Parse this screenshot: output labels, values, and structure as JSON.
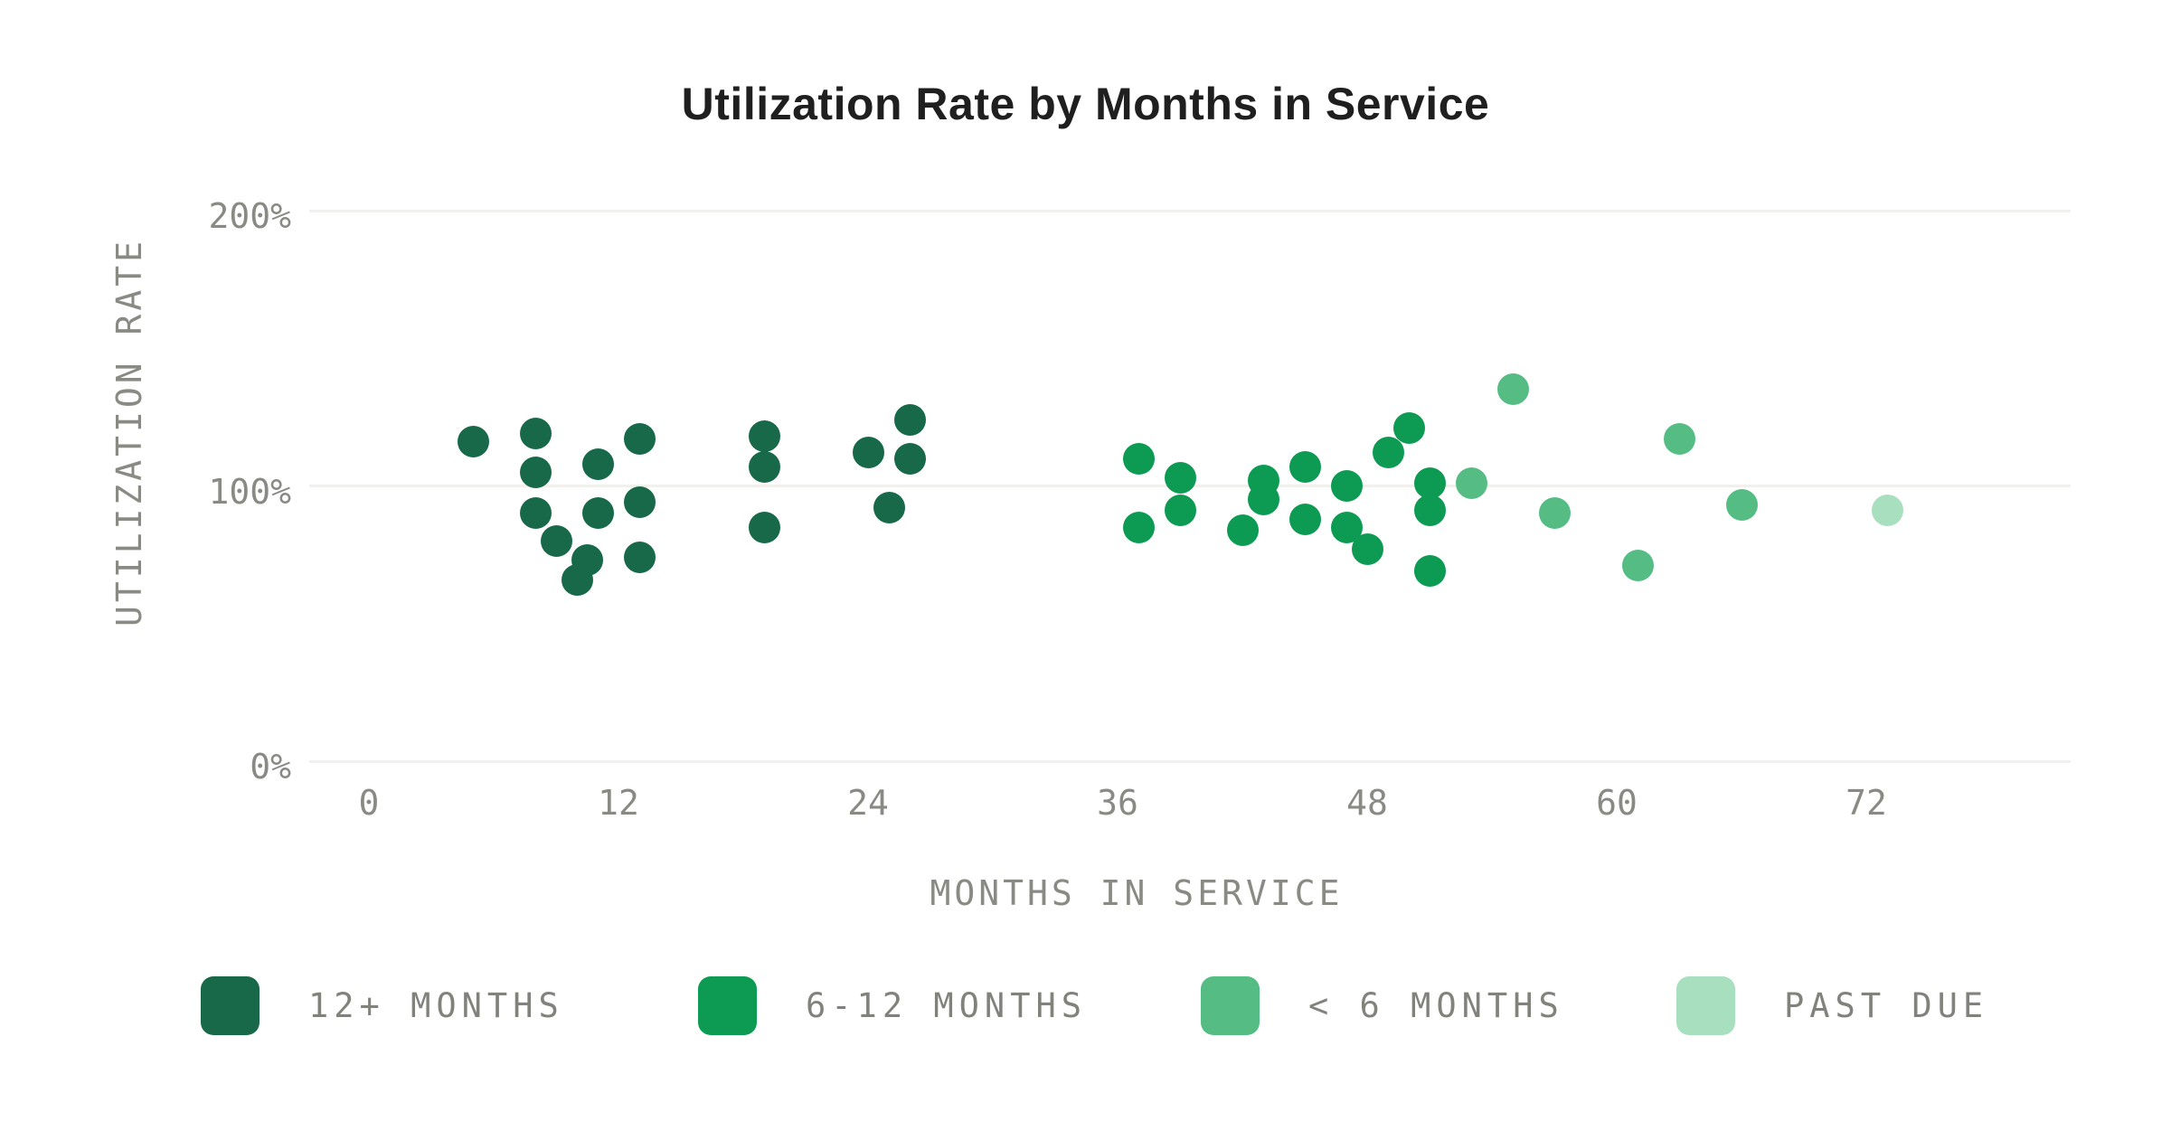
{
  "title": "Utilization Rate by Months in Service",
  "x_axis": {
    "label": "MONTHS IN SERVICE",
    "ticks": [
      {
        "label": "0",
        "value": 0
      },
      {
        "label": "12",
        "value": 12
      },
      {
        "label": "24",
        "value": 24
      },
      {
        "label": "36",
        "value": 36
      },
      {
        "label": "48",
        "value": 48
      },
      {
        "label": "60",
        "value": 60
      },
      {
        "label": "72",
        "value": 72
      }
    ]
  },
  "y_axis": {
    "label": "UTILIZATION RATE",
    "ticks": [
      {
        "label": "200%",
        "value": 200
      },
      {
        "label": "100%",
        "value": 100
      },
      {
        "label": "0%",
        "value": 0
      }
    ]
  },
  "legend": [
    {
      "label": "12+ MONTHS",
      "color": "#17694a"
    },
    {
      "label": "6-12 MONTHS",
      "color": "#0d9b53"
    },
    {
      "label": "< 6 MONTHS",
      "color": "#55bd84"
    },
    {
      "label": "PAST DUE",
      "color": "#a8e0bf"
    }
  ],
  "chart_data": {
    "type": "scatter",
    "title": "Utilization Rate by Months in Service",
    "xlabel": "MONTHS IN SERVICE",
    "ylabel": "UTILIZATION RATE",
    "xlim": [
      -3,
      82
    ],
    "ylim": [
      0,
      220
    ],
    "grid": "horizontal gridlines at 0%, 100%, 200% only",
    "legend_position": "bottom",
    "x_units": "months",
    "y_units": "percent utilization",
    "series": [
      {
        "name": "12+ MONTHS",
        "color": "#17694a",
        "points": [
          [
            5,
            116
          ],
          [
            8,
            119
          ],
          [
            8,
            105
          ],
          [
            8,
            90
          ],
          [
            9,
            80
          ],
          [
            10,
            66
          ],
          [
            10.5,
            73
          ],
          [
            11,
            108
          ],
          [
            11,
            90
          ],
          [
            13,
            117
          ],
          [
            13,
            94
          ],
          [
            13,
            74
          ],
          [
            19,
            118
          ],
          [
            19,
            107
          ],
          [
            19,
            85
          ],
          [
            24,
            112
          ],
          [
            25,
            92
          ],
          [
            26,
            124
          ],
          [
            26,
            110
          ]
        ]
      },
      {
        "name": "6-12 MONTHS",
        "color": "#0d9b53",
        "points": [
          [
            37,
            110
          ],
          [
            37,
            85
          ],
          [
            39,
            103
          ],
          [
            39,
            91
          ],
          [
            42,
            84
          ],
          [
            43,
            102
          ],
          [
            43,
            95
          ],
          [
            45,
            107
          ],
          [
            45,
            88
          ],
          [
            47,
            100
          ],
          [
            47,
            85
          ],
          [
            48,
            77
          ],
          [
            49,
            112
          ],
          [
            50,
            121
          ],
          [
            51,
            101
          ],
          [
            51,
            91
          ],
          [
            51,
            69
          ]
        ]
      },
      {
        "name": "< 6 MONTHS",
        "color": "#55bd84",
        "points": [
          [
            53,
            101
          ],
          [
            55,
            135
          ],
          [
            57,
            90
          ],
          [
            61,
            71
          ],
          [
            63,
            117
          ],
          [
            66,
            93
          ]
        ]
      },
      {
        "name": "PAST DUE",
        "color": "#a8e0bf",
        "points": [
          [
            73,
            91
          ]
        ]
      }
    ]
  }
}
